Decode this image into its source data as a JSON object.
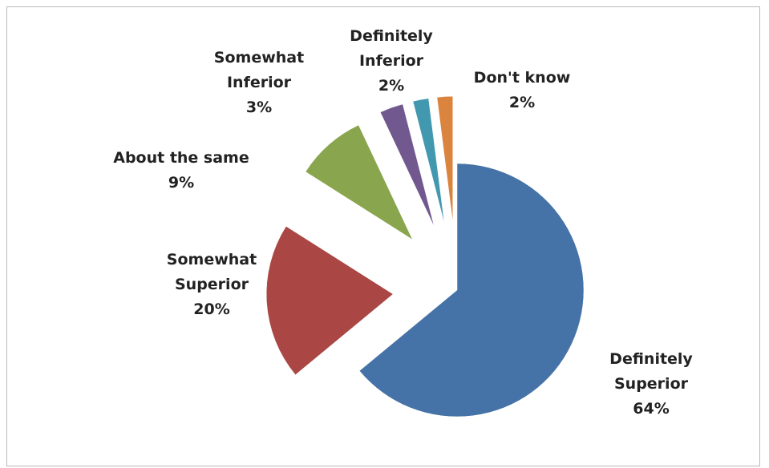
{
  "chart_data": {
    "type": "pie",
    "title": "",
    "legend": "none",
    "series": [
      {
        "values": [
          64,
          20,
          9,
          3,
          2,
          2
        ],
        "labels": [
          [
            "Definitely",
            "Superior",
            "64%"
          ],
          [
            "Somewhat",
            "Superior",
            "20%"
          ],
          [
            "About the same",
            "9%"
          ],
          [
            "Somewhat",
            "Inferior",
            "3%"
          ],
          [
            "Definitely",
            "Inferior",
            "2%"
          ],
          [
            "Don't know",
            "2%"
          ]
        ],
        "categories": [
          "Definitely Superior",
          "Somewhat Superior",
          "About the same",
          "Somewhat Inferior",
          "Definitely Inferior",
          "Don't know"
        ],
        "colors": [
          "#4572a7",
          "#aa4643",
          "#89a54e",
          "#71588f",
          "#4198af",
          "#db843d"
        ]
      }
    ]
  }
}
